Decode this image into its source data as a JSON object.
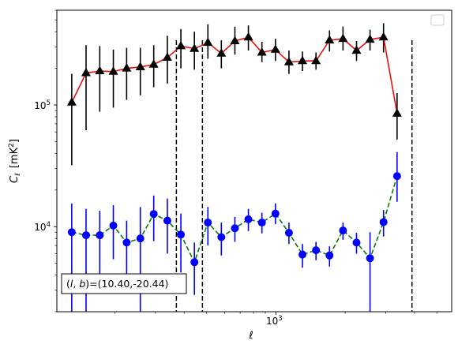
{
  "chart_data": {
    "type": "scatter",
    "xlabel": "ℓ",
    "ylabel_main": "C",
    "ylabel_sub": "ℓ",
    "ylabel_units_prefix": "[mK",
    "ylabel_units_sup": "2",
    "ylabel_units_suffix": "]",
    "x_scale": "log",
    "y_scale": "log",
    "xlim": [
      112,
      5800
    ],
    "ylim": [
      2000,
      600000
    ],
    "x_ticks": [
      {
        "value": 1000,
        "base": "10",
        "exp": "3"
      }
    ],
    "y_ticks": [
      {
        "value": 10000,
        "base": "10",
        "exp": "4"
      },
      {
        "value": 100000,
        "base": "10",
        "exp": "5"
      }
    ],
    "legend_position": "upper-right",
    "annotation": "(l, b)=(10.40,-20.44)",
    "annotation_parts": {
      "open": "(",
      "l": "l",
      "sep": ", ",
      "b": "b",
      "close": ")",
      "value": "=(10.40,-20.44)"
    },
    "vlines": [
      370,
      480,
      3900
    ],
    "series": [
      {
        "marker": "triangle",
        "line_color": "#e8120c",
        "marker_color": "#000000",
        "error_color": "#000000",
        "line_style": "solid",
        "points": [
          {
            "x": 130,
            "y": 105000,
            "lo": 32000,
            "hi": 180000
          },
          {
            "x": 150,
            "y": 183000,
            "lo": 62000,
            "hi": 310000
          },
          {
            "x": 172,
            "y": 190000,
            "lo": 88000,
            "hi": 305000
          },
          {
            "x": 197,
            "y": 188000,
            "lo": 95000,
            "hi": 285000
          },
          {
            "x": 225,
            "y": 200000,
            "lo": 110000,
            "hi": 295000
          },
          {
            "x": 258,
            "y": 205000,
            "lo": 120000,
            "hi": 295000
          },
          {
            "x": 295,
            "y": 215000,
            "lo": 140000,
            "hi": 310000
          },
          {
            "x": 338,
            "y": 245000,
            "lo": 150000,
            "hi": 370000
          },
          {
            "x": 387,
            "y": 305000,
            "lo": 200000,
            "hi": 420000
          },
          {
            "x": 443,
            "y": 290000,
            "lo": 195000,
            "hi": 400000
          },
          {
            "x": 507,
            "y": 325000,
            "lo": 240000,
            "hi": 460000
          },
          {
            "x": 580,
            "y": 265000,
            "lo": 200000,
            "hi": 340000
          },
          {
            "x": 664,
            "y": 335000,
            "lo": 260000,
            "hi": 440000
          },
          {
            "x": 760,
            "y": 360000,
            "lo": 280000,
            "hi": 450000
          },
          {
            "x": 870,
            "y": 270000,
            "lo": 225000,
            "hi": 330000
          },
          {
            "x": 996,
            "y": 285000,
            "lo": 230000,
            "hi": 350000
          },
          {
            "x": 1140,
            "y": 225000,
            "lo": 180000,
            "hi": 280000
          },
          {
            "x": 1305,
            "y": 230000,
            "lo": 190000,
            "hi": 275000
          },
          {
            "x": 1494,
            "y": 230000,
            "lo": 195000,
            "hi": 270000
          },
          {
            "x": 1710,
            "y": 340000,
            "lo": 275000,
            "hi": 410000
          },
          {
            "x": 1957,
            "y": 350000,
            "lo": 280000,
            "hi": 440000
          },
          {
            "x": 2240,
            "y": 280000,
            "lo": 230000,
            "hi": 335000
          },
          {
            "x": 2564,
            "y": 345000,
            "lo": 280000,
            "hi": 415000
          },
          {
            "x": 2935,
            "y": 360000,
            "lo": 270000,
            "hi": 470000
          },
          {
            "x": 3360,
            "y": 85000,
            "lo": 52000,
            "hi": 125000
          }
        ]
      },
      {
        "marker": "circle",
        "line_color": "#0a7a0a",
        "marker_color": "#0000ff",
        "error_color": "#0000ff",
        "line_style": "dashed",
        "points": [
          {
            "x": 130,
            "y": 9000,
            "lo": 2000,
            "hi": 15500
          },
          {
            "x": 150,
            "y": 8500,
            "lo": 2000,
            "hi": 14000
          },
          {
            "x": 172,
            "y": 8500,
            "lo": 3500,
            "hi": 13500
          },
          {
            "x": 197,
            "y": 10200,
            "lo": 5400,
            "hi": 15000
          },
          {
            "x": 225,
            "y": 7400,
            "lo": 3800,
            "hi": 11200
          },
          {
            "x": 258,
            "y": 8000,
            "lo": 2000,
            "hi": 14500
          },
          {
            "x": 295,
            "y": 12700,
            "lo": 7600,
            "hi": 18000
          },
          {
            "x": 338,
            "y": 11200,
            "lo": 6000,
            "hi": 17000
          },
          {
            "x": 387,
            "y": 8600,
            "lo": 4200,
            "hi": 12800
          },
          {
            "x": 443,
            "y": 5100,
            "lo": 2750,
            "hi": 7400
          },
          {
            "x": 507,
            "y": 10800,
            "lo": 7000,
            "hi": 14500
          },
          {
            "x": 580,
            "y": 8200,
            "lo": 5800,
            "hi": 10800
          },
          {
            "x": 664,
            "y": 9700,
            "lo": 7500,
            "hi": 12000
          },
          {
            "x": 760,
            "y": 11500,
            "lo": 9200,
            "hi": 14000
          },
          {
            "x": 870,
            "y": 10800,
            "lo": 8800,
            "hi": 13000
          },
          {
            "x": 996,
            "y": 12800,
            "lo": 10500,
            "hi": 15500
          },
          {
            "x": 1140,
            "y": 8900,
            "lo": 7200,
            "hi": 10800
          },
          {
            "x": 1305,
            "y": 5900,
            "lo": 4600,
            "hi": 7200
          },
          {
            "x": 1494,
            "y": 6400,
            "lo": 5300,
            "hi": 7500
          },
          {
            "x": 1710,
            "y": 5800,
            "lo": 4700,
            "hi": 6900
          },
          {
            "x": 1957,
            "y": 9300,
            "lo": 7800,
            "hi": 10800
          },
          {
            "x": 2240,
            "y": 7400,
            "lo": 6000,
            "hi": 8900
          },
          {
            "x": 2564,
            "y": 5500,
            "lo": 2000,
            "hi": 9000
          },
          {
            "x": 2935,
            "y": 10900,
            "lo": 8300,
            "hi": 13700
          },
          {
            "x": 3360,
            "y": 26000,
            "lo": 16000,
            "hi": 41000
          }
        ]
      }
    ]
  }
}
